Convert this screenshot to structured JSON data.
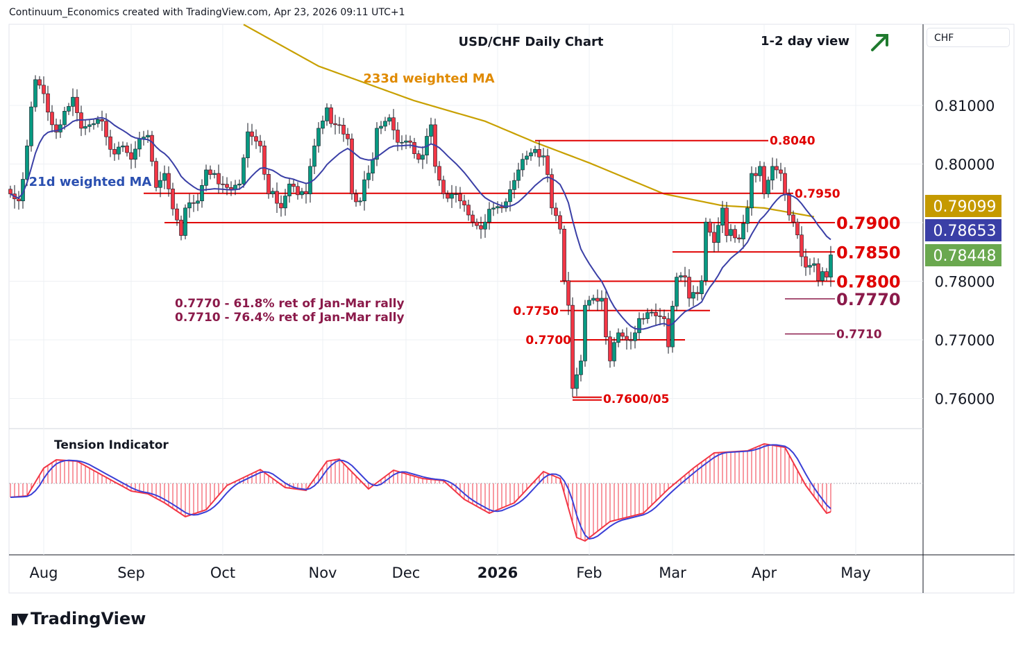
{
  "header": {
    "credit": "Continuum_Economics created with TradingView.com, Apr 23, 2026 09:11 UTC+1"
  },
  "brand": {
    "logo_text": "TradingView"
  },
  "currency_button": "CHF",
  "colors": {
    "up": "#089981",
    "down": "#f23645",
    "level": "#e00000",
    "ma233": "#c8a000",
    "ma21": "#3a3fa6",
    "fib": "#8b1a4a",
    "last": "#6aa84f"
  },
  "chart_data": {
    "type": "candlestick",
    "title": "USD/CHF Daily Chart",
    "subtitle": "1-2 day view",
    "view_direction_icon": "arrow-up-right-icon",
    "ylim": [
      0.753,
      0.824
    ],
    "y_ticks": [
      "0.81000",
      "0.80000",
      "0.78000",
      "0.77000",
      "0.76000"
    ],
    "y_tick_values": [
      0.81,
      0.8,
      0.78,
      0.77,
      0.76
    ],
    "x_ticks": [
      {
        "label": "Aug",
        "day": 8,
        "bold": false
      },
      {
        "label": "Sep",
        "day": 29,
        "bold": false
      },
      {
        "label": "Oct",
        "day": 51,
        "bold": false
      },
      {
        "label": "Nov",
        "day": 75,
        "bold": false
      },
      {
        "label": "Dec",
        "day": 95,
        "bold": false
      },
      {
        "label": "2026",
        "day": 117,
        "bold": true
      },
      {
        "label": "Feb",
        "day": 139,
        "bold": false
      },
      {
        "label": "Mar",
        "day": 159,
        "bold": false
      },
      {
        "label": "Apr",
        "day": 181,
        "bold": false
      },
      {
        "label": "May",
        "day": 203,
        "bold": false
      }
    ],
    "price_tags": [
      {
        "label": "0.79099",
        "value": 0.79099,
        "series": "233d weighted MA",
        "color": "#c59a00"
      },
      {
        "label": "0.78653",
        "value": 0.78653,
        "series": "21d weighted MA",
        "color": "#3a3fa6"
      },
      {
        "label": "0.78448",
        "value": 0.78448,
        "series": "last price",
        "color": "#6aa84f"
      }
    ],
    "close_keypoints": [
      [
        0,
        0.7949
      ],
      [
        2,
        0.7937
      ],
      [
        4,
        0.8031
      ],
      [
        6,
        0.8144
      ],
      [
        8,
        0.812
      ],
      [
        10,
        0.8067
      ],
      [
        12,
        0.8067
      ],
      [
        15,
        0.8114
      ],
      [
        17,
        0.8061
      ],
      [
        19,
        0.8067
      ],
      [
        22,
        0.8073
      ],
      [
        24,
        0.8025
      ],
      [
        27,
        0.8031
      ],
      [
        29,
        0.8008
      ],
      [
        31,
        0.8043
      ],
      [
        33,
        0.8049
      ],
      [
        35,
        0.796
      ],
      [
        37,
        0.7984
      ],
      [
        41,
        0.7878
      ],
      [
        42,
        0.7925
      ],
      [
        45,
        0.7937
      ],
      [
        47,
        0.799
      ],
      [
        50,
        0.7966
      ],
      [
        52,
        0.796
      ],
      [
        55,
        0.7966
      ],
      [
        57,
        0.8055
      ],
      [
        60,
        0.8031
      ],
      [
        62,
        0.7949
      ],
      [
        65,
        0.7925
      ],
      [
        67,
        0.7966
      ],
      [
        71,
        0.7949
      ],
      [
        72,
        0.7996
      ],
      [
        74,
        0.8061
      ],
      [
        76,
        0.8096
      ],
      [
        78,
        0.8067
      ],
      [
        81,
        0.8043
      ],
      [
        82,
        0.7949
      ],
      [
        84,
        0.7937
      ],
      [
        87,
        0.8008
      ],
      [
        88,
        0.8061
      ],
      [
        91,
        0.8079
      ],
      [
        93,
        0.8037
      ],
      [
        96,
        0.8037
      ],
      [
        98,
        0.8008
      ],
      [
        101,
        0.8067
      ],
      [
        102,
        0.7996
      ],
      [
        104,
        0.7949
      ],
      [
        107,
        0.7949
      ],
      [
        111,
        0.7901
      ],
      [
        113,
        0.7889
      ],
      [
        116,
        0.7925
      ],
      [
        118,
        0.7925
      ],
      [
        121,
        0.7972
      ],
      [
        123,
        0.8008
      ],
      [
        126,
        0.8025
      ],
      [
        128,
        0.8014
      ],
      [
        130,
        0.7925
      ],
      [
        132,
        0.7889
      ],
      [
        133,
        0.7801
      ],
      [
        134,
        0.7759
      ],
      [
        135,
        0.7617
      ],
      [
        137,
        0.7664
      ],
      [
        138,
        0.7759
      ],
      [
        140,
        0.7771
      ],
      [
        142,
        0.7771
      ],
      [
        144,
        0.7664
      ],
      [
        146,
        0.7712
      ],
      [
        148,
        0.77
      ],
      [
        150,
        0.7712
      ],
      [
        152,
        0.7736
      ],
      [
        154,
        0.7747
      ],
      [
        157,
        0.7736
      ],
      [
        158,
        0.7688
      ],
      [
        160,
        0.7807
      ],
      [
        162,
        0.7807
      ],
      [
        163,
        0.7771
      ],
      [
        166,
        0.7801
      ],
      [
        167,
        0.7901
      ],
      [
        169,
        0.7866
      ],
      [
        171,
        0.7925
      ],
      [
        172,
        0.7878
      ],
      [
        175,
        0.7872
      ],
      [
        177,
        0.7925
      ],
      [
        178,
        0.7984
      ],
      [
        180,
        0.7996
      ],
      [
        181,
        0.7949
      ],
      [
        183,
        0.7996
      ],
      [
        185,
        0.7984
      ],
      [
        187,
        0.7913
      ],
      [
        188,
        0.7901
      ],
      [
        190,
        0.7842
      ],
      [
        191,
        0.7824
      ],
      [
        193,
        0.783
      ],
      [
        194,
        0.7801
      ],
      [
        196,
        0.7807
      ],
      [
        197,
        0.7845
      ]
    ],
    "ma233_keypoints": [
      [
        56,
        0.8238
      ],
      [
        74,
        0.8167
      ],
      [
        97,
        0.8108
      ],
      [
        114,
        0.8073
      ],
      [
        126,
        0.8037
      ],
      [
        139,
        0.8002
      ],
      [
        157,
        0.7949
      ],
      [
        171,
        0.7929
      ],
      [
        181,
        0.7925
      ],
      [
        193,
        0.791
      ]
    ],
    "ma21_label": "21d weighted MA",
    "ma233_label": "233d weighted MA",
    "levels": [
      {
        "label": "0.8040",
        "value": 0.804,
        "from": 126,
        "to": 182,
        "style": "red",
        "label_side": "right"
      },
      {
        "label": "0.7950",
        "value": 0.795,
        "from": 32,
        "to": 188,
        "style": "red",
        "label_side": "right"
      },
      {
        "label": "0.7900",
        "value": 0.79,
        "from": 37,
        "to": 198,
        "style": "red-big",
        "label_side": "right"
      },
      {
        "label": "0.7850",
        "value": 0.785,
        "from": 159,
        "to": 198,
        "style": "red-big",
        "label_side": "right"
      },
      {
        "label": "0.7800",
        "value": 0.78,
        "from": 132,
        "to": 198,
        "style": "red-big",
        "label_side": "right"
      },
      {
        "label": "0.7770",
        "value": 0.777,
        "from": 186,
        "to": 198,
        "style": "fib-big",
        "label_side": "right"
      },
      {
        "label": "0.7750",
        "value": 0.775,
        "from": 132,
        "to": 168,
        "style": "red",
        "label_side": "left"
      },
      {
        "label": "0.7700",
        "value": 0.77,
        "from": 135,
        "to": 162,
        "style": "red",
        "label_side": "left"
      },
      {
        "label": "0.7710",
        "value": 0.771,
        "from": 186,
        "to": 198,
        "style": "fib",
        "label_side": "right"
      },
      {
        "label": "0.7600/05",
        "value": 0.7602,
        "from": 135,
        "to": 142,
        "style": "red-double",
        "label_side": "right"
      }
    ],
    "annotations": [
      "0.7770 - 61.8% ret of Jan-Mar rally",
      "0.7710 - 76.4% ret of Jan-Mar rally"
    ],
    "indicator": {
      "title": "Tension Indicator",
      "keypoints": [
        [
          0,
          -0.2
        ],
        [
          4,
          -0.18
        ],
        [
          8,
          0.22
        ],
        [
          11,
          0.34
        ],
        [
          16,
          0.32
        ],
        [
          22,
          0.12
        ],
        [
          29,
          -0.11
        ],
        [
          33,
          -0.15
        ],
        [
          37,
          -0.28
        ],
        [
          42,
          -0.48
        ],
        [
          47,
          -0.38
        ],
        [
          52,
          -0.03
        ],
        [
          60,
          0.2
        ],
        [
          66,
          -0.06
        ],
        [
          71,
          -0.1
        ],
        [
          76,
          0.32
        ],
        [
          79,
          0.35
        ],
        [
          86,
          -0.08
        ],
        [
          92,
          0.19
        ],
        [
          99,
          0.07
        ],
        [
          104,
          0.04
        ],
        [
          109,
          -0.23
        ],
        [
          115,
          -0.43
        ],
        [
          121,
          -0.28
        ],
        [
          128,
          0.17
        ],
        [
          132,
          0.07
        ],
        [
          136,
          -0.78
        ],
        [
          138,
          -0.83
        ],
        [
          144,
          -0.55
        ],
        [
          152,
          -0.43
        ],
        [
          158,
          -0.08
        ],
        [
          164,
          0.22
        ],
        [
          169,
          0.44
        ],
        [
          177,
          0.47
        ],
        [
          181,
          0.57
        ],
        [
          186,
          0.52
        ],
        [
          191,
          -0.03
        ],
        [
          196,
          -0.43
        ],
        [
          197,
          -0.41
        ]
      ]
    }
  }
}
